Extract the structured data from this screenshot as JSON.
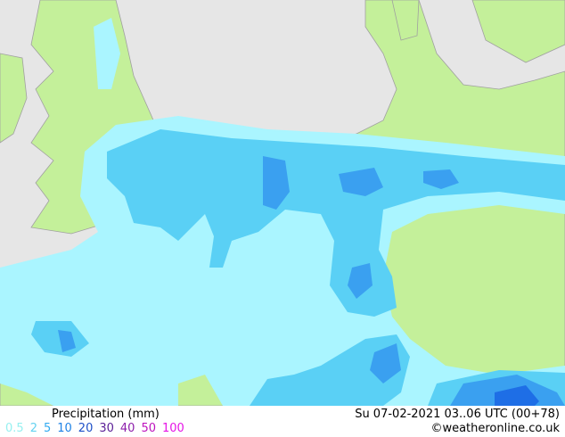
{
  "footer": {
    "title": "Precipitation (mm)",
    "valid_time": "Su 07-02-2021 03..06 UTC (00+78)",
    "credit": "©weatheronline.co.uk",
    "legend": [
      {
        "label": "0.5",
        "color": "#96f0f0"
      },
      {
        "label": "2",
        "color": "#64d2f0"
      },
      {
        "label": "5",
        "color": "#32aaf0"
      },
      {
        "label": "10",
        "color": "#1e82e6"
      },
      {
        "label": "20",
        "color": "#1e50c8"
      },
      {
        "label": "30",
        "color": "#5a1e96"
      },
      {
        "label": "40",
        "color": "#8c1eaa"
      },
      {
        "label": "50",
        "color": "#be14be"
      },
      {
        "label": "100",
        "color": "#e614e6"
      }
    ]
  }
}
